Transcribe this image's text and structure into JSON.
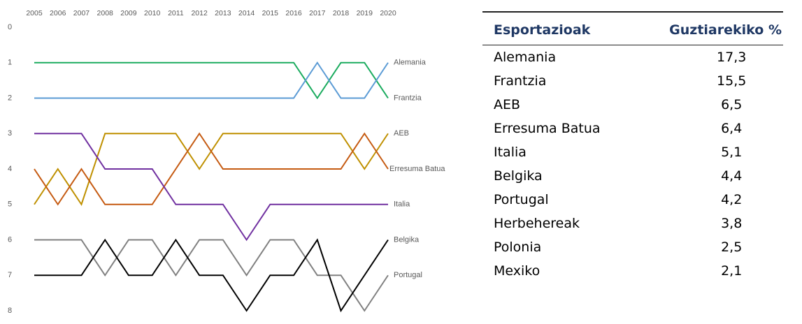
{
  "chart_data": {
    "type": "line",
    "categories": [
      "2005",
      "2006",
      "2007",
      "2008",
      "2009",
      "2010",
      "2011",
      "2012",
      "2013",
      "2014",
      "2015",
      "2016",
      "2017",
      "2018",
      "2019",
      "2020"
    ],
    "ylim": [
      0,
      8
    ],
    "yticks": [
      0,
      1,
      2,
      3,
      4,
      5,
      6,
      7,
      8
    ],
    "inverted": true,
    "series": [
      {
        "name": "Alemania",
        "color": "#1aab5e",
        "values": [
          1,
          1,
          1,
          1,
          1,
          1,
          1,
          1,
          1,
          1,
          1,
          1,
          2,
          1,
          1,
          2
        ]
      },
      {
        "name": "Frantzia",
        "color": "#5b9bd5",
        "values": [
          2,
          2,
          2,
          2,
          2,
          2,
          2,
          2,
          2,
          2,
          2,
          2,
          1,
          2,
          2,
          1
        ]
      },
      {
        "name": "AEB",
        "color": "#bf9000",
        "values": [
          5,
          4,
          5,
          3,
          3,
          3,
          3,
          4,
          3,
          3,
          3,
          3,
          3,
          3,
          4,
          3
        ]
      },
      {
        "name": "Erresuma Batua",
        "color": "#c55a11",
        "values": [
          4,
          5,
          4,
          5,
          5,
          5,
          4,
          3,
          4,
          4,
          4,
          4,
          4,
          4,
          3,
          4
        ]
      },
      {
        "name": "Italia",
        "color": "#7030a0",
        "values": [
          3,
          3,
          3,
          4,
          4,
          4,
          5,
          5,
          5,
          6,
          5,
          5,
          5,
          5,
          5,
          5
        ]
      },
      {
        "name": "Belgika",
        "color": "#808080",
        "values": [
          6,
          6,
          6,
          7,
          6,
          6,
          7,
          6,
          6,
          7,
          6,
          6,
          7,
          7,
          8,
          7
        ]
      },
      {
        "name": "Portugal",
        "color": "#000000",
        "values": [
          7,
          7,
          7,
          6,
          7,
          7,
          6,
          7,
          7,
          8,
          7,
          7,
          6,
          8,
          7,
          6
        ]
      }
    ]
  },
  "table": {
    "header": [
      "Esportazioak",
      "Guztiarekiko %"
    ],
    "rows": [
      [
        "Alemania",
        "17,3"
      ],
      [
        "Frantzia",
        "15,5"
      ],
      [
        "AEB",
        "6,5"
      ],
      [
        "Erresuma Batua",
        "6,4"
      ],
      [
        "Italia",
        "5,1"
      ],
      [
        "Belgika",
        "4,4"
      ],
      [
        "Portugal",
        "4,2"
      ],
      [
        "Herbehereak",
        "3,8"
      ],
      [
        "Polonia",
        "2,5"
      ],
      [
        "Mexiko",
        "2,1"
      ]
    ]
  }
}
